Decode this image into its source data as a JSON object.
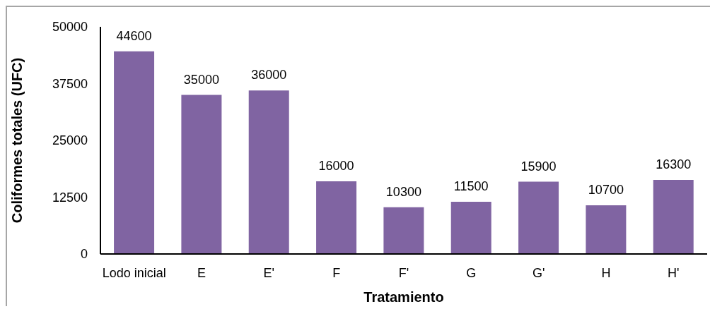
{
  "chart_data": {
    "type": "bar",
    "xlabel": "Tratamiento",
    "ylabel": "Coliformes totales (UFC)",
    "categories": [
      "Lodo inicial",
      "E",
      "E'",
      "F",
      "F'",
      "G",
      "G'",
      "H",
      "H'"
    ],
    "values": [
      44600,
      35000,
      36000,
      16000,
      10300,
      11500,
      15900,
      10700,
      16300
    ],
    "color": "#8064a2",
    "ylim": [
      0,
      50000
    ],
    "yticks": [
      0,
      12500,
      25000,
      37500,
      50000
    ],
    "data_labels": true
  }
}
